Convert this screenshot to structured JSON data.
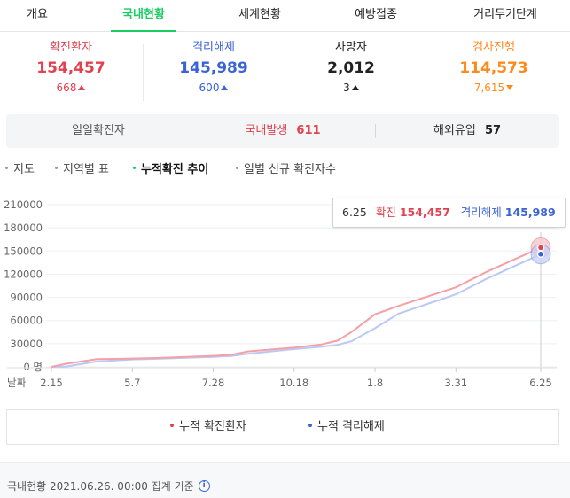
{
  "tabs": [
    {
      "label": "개요",
      "active": false
    },
    {
      "label": "국내현황",
      "active": true
    },
    {
      "label": "세계현황",
      "active": false
    },
    {
      "label": "예방접종",
      "active": false
    },
    {
      "label": "거리두기단계",
      "active": false
    }
  ],
  "stats": [
    {
      "label": "확진환자",
      "value": "154,457",
      "delta": "668",
      "trend": "up",
      "color": "#e0424f"
    },
    {
      "label": "격리해제",
      "value": "145,989",
      "delta": "600",
      "trend": "up",
      "color": "#3a63d6"
    },
    {
      "label": "사망자",
      "value": "2,012",
      "delta": "3",
      "trend": "up",
      "color": "#222222"
    },
    {
      "label": "검사진행",
      "value": "114,573",
      "delta": "7,615",
      "trend": "down",
      "color": "#ff8a1c"
    }
  ],
  "daily": {
    "total_label": "일일확진자",
    "domestic_label": "국내발생",
    "domestic_value": "611",
    "overseas_label": "해외유입",
    "overseas_value": "57"
  },
  "submenu": [
    {
      "label": "지도",
      "active": false
    },
    {
      "label": "지역별 표",
      "active": false
    },
    {
      "label": "누적확진 추이",
      "active": true
    },
    {
      "label": "일별 신규 확진자수",
      "active": false
    }
  ],
  "tooltip": {
    "date": "6.25",
    "confirmed_label": "확진",
    "confirmed_value": "154,457",
    "released_label": "격리해제",
    "released_value": "145,989"
  },
  "legend": {
    "confirmed": "누적 확진환자",
    "released": "누적 격리해제"
  },
  "footer": {
    "text": "국내현황 2021.06.26. 00:00 집계 기준",
    "info_icon": "info-icon"
  },
  "colors": {
    "accent": "#19ce60",
    "confirmed": "#f3a0a6",
    "released": "#bcc8f4",
    "confirmed_dot": "#e0424f",
    "released_dot": "#3a63d6"
  },
  "chart_data": {
    "type": "line",
    "xlabel": "날짜",
    "ylabel": "",
    "ylim": [
      0,
      210000
    ],
    "y_ticks": [
      "210000",
      "180000",
      "150000",
      "120000",
      "90000",
      "60000",
      "30000",
      "0 명"
    ],
    "x_ticks": [
      "2.15",
      "5.7",
      "7.28",
      "10.18",
      "1.8",
      "3.31",
      "6.25"
    ],
    "series": [
      {
        "name": "누적 확진환자",
        "x": [
          "2.15",
          "3.1",
          "4.1",
          "5.7",
          "6.1",
          "7.28",
          "8.15",
          "9.1",
          "10.18",
          "11.15",
          "12.1",
          "12.15",
          "1.8",
          "2.1",
          "3.31",
          "5.1",
          "6.25"
        ],
        "values": [
          30,
          4000,
          10000,
          10800,
          11500,
          14200,
          15500,
          20000,
          25000,
          29000,
          34000,
          45000,
          68000,
          79000,
          103000,
          123000,
          154457
        ]
      },
      {
        "name": "누적 격리해제",
        "x": [
          "2.15",
          "3.1",
          "4.1",
          "5.7",
          "6.1",
          "7.28",
          "8.15",
          "9.1",
          "10.18",
          "11.15",
          "12.1",
          "12.15",
          "1.8",
          "2.1",
          "3.31",
          "5.1",
          "6.25"
        ],
        "values": [
          10,
          500,
          7000,
          9600,
          10500,
          13000,
          14000,
          17000,
          23000,
          26000,
          28500,
          33000,
          50000,
          69000,
          94000,
          114000,
          145989
        ]
      }
    ]
  }
}
